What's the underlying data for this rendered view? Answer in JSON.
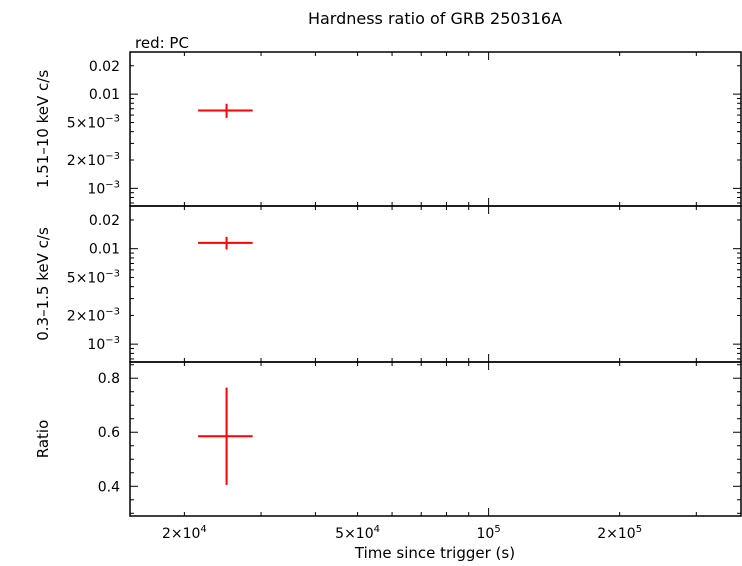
{
  "chart_data": {
    "type": "scatter",
    "title": "Hardness ratio of GRB 250316A",
    "subtitle": "red: PC",
    "xlabel": "Time since trigger (s)",
    "xscale": "log",
    "xlim": [
      15000,
      380000
    ],
    "xticks": [
      {
        "value": 20000,
        "mant": "2×10",
        "exp": "4"
      },
      {
        "value": 50000,
        "mant": "5×10",
        "exp": "4"
      },
      {
        "value": 100000,
        "mant": "10",
        "exp": "5"
      },
      {
        "value": 200000,
        "mant": "2×10",
        "exp": "5"
      }
    ],
    "panels": [
      {
        "id": "hard",
        "ylabel": "1.51–10 keV c/s",
        "yscale": "log",
        "ylim": [
          0.00065,
          0.028
        ],
        "yticks": [
          {
            "value": 0.02,
            "mant": "0.02",
            "exp": ""
          },
          {
            "value": 0.01,
            "mant": "0.01",
            "exp": ""
          },
          {
            "value": 0.005,
            "mant": "5×10",
            "exp": "−3"
          },
          {
            "value": 0.002,
            "mant": "2×10",
            "exp": "−3"
          },
          {
            "value": 0.001,
            "mant": "10",
            "exp": "−3"
          }
        ],
        "series": [
          {
            "color": "#ff0000",
            "points": [
              {
                "x": 25000,
                "xlo": 21500,
                "xhi": 28700,
                "y": 0.0067,
                "ylo": 0.0056,
                "yhi": 0.0079
              }
            ]
          }
        ]
      },
      {
        "id": "soft",
        "ylabel": "0.3–1.5 keV c/s",
        "yscale": "log",
        "ylim": [
          0.00065,
          0.028
        ],
        "yticks": [
          {
            "value": 0.02,
            "mant": "0.02",
            "exp": ""
          },
          {
            "value": 0.01,
            "mant": "0.01",
            "exp": ""
          },
          {
            "value": 0.005,
            "mant": "5×10",
            "exp": "−3"
          },
          {
            "value": 0.002,
            "mant": "2×10",
            "exp": "−3"
          },
          {
            "value": 0.001,
            "mant": "10",
            "exp": "−3"
          }
        ],
        "series": [
          {
            "color": "#ff0000",
            "points": [
              {
                "x": 25000,
                "xlo": 21500,
                "xhi": 28700,
                "y": 0.0115,
                "ylo": 0.0098,
                "yhi": 0.0133
              }
            ]
          }
        ]
      },
      {
        "id": "ratio",
        "ylabel": "Ratio",
        "yscale": "linear",
        "ylim": [
          0.29,
          0.86
        ],
        "yticks": [
          {
            "value": 0.8,
            "mant": "0.8",
            "exp": ""
          },
          {
            "value": 0.6,
            "mant": "0.6",
            "exp": ""
          },
          {
            "value": 0.4,
            "mant": "0.4",
            "exp": ""
          }
        ],
        "series": [
          {
            "color": "#ff0000",
            "points": [
              {
                "x": 25000,
                "xlo": 21500,
                "xhi": 28700,
                "y": 0.585,
                "ylo": 0.405,
                "yhi": 0.765
              }
            ]
          }
        ]
      }
    ]
  }
}
